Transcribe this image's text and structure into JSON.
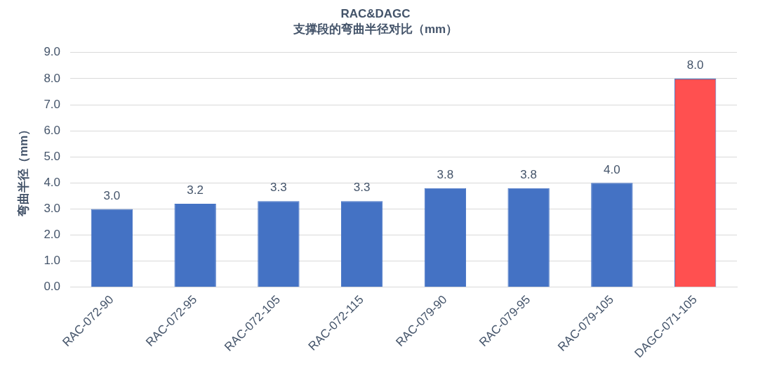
{
  "chart_data": {
    "type": "bar",
    "title": "RAC&DAGC",
    "subtitle": "支撑段的弯曲半径对比（mm）",
    "ylabel": "弯曲半径（mm）",
    "categories": [
      "RAC-072-90",
      "RAC-072-95",
      "RAC-072-105",
      "RAC-072-115",
      "RAC-079-90",
      "RAC-079-95",
      "RAC-079-105",
      "DAGC-071-105"
    ],
    "values": [
      3.0,
      3.2,
      3.3,
      3.3,
      3.8,
      3.8,
      4.0,
      8.0
    ],
    "value_labels": [
      "3.0",
      "3.2",
      "3.3",
      "3.3",
      "3.8",
      "3.8",
      "4.0",
      "8.0"
    ],
    "colors": [
      "#4472c4",
      "#4472c4",
      "#4472c4",
      "#4472c4",
      "#4472c4",
      "#4472c4",
      "#4472c4",
      "#ff5050"
    ],
    "ylim": [
      0,
      9
    ],
    "yticks": [
      {
        "value": 0,
        "label": "0.0"
      },
      {
        "value": 1,
        "label": "1.0"
      },
      {
        "value": 2,
        "label": "2.0"
      },
      {
        "value": 3,
        "label": "3.0"
      },
      {
        "value": 4,
        "label": "4.0"
      },
      {
        "value": 5,
        "label": "5.0"
      },
      {
        "value": 6,
        "label": "6.0"
      },
      {
        "value": 7,
        "label": "7.0"
      },
      {
        "value": 8,
        "label": "8.0"
      },
      {
        "value": 9,
        "label": "9.0"
      }
    ],
    "grid": "y",
    "legend": false
  }
}
